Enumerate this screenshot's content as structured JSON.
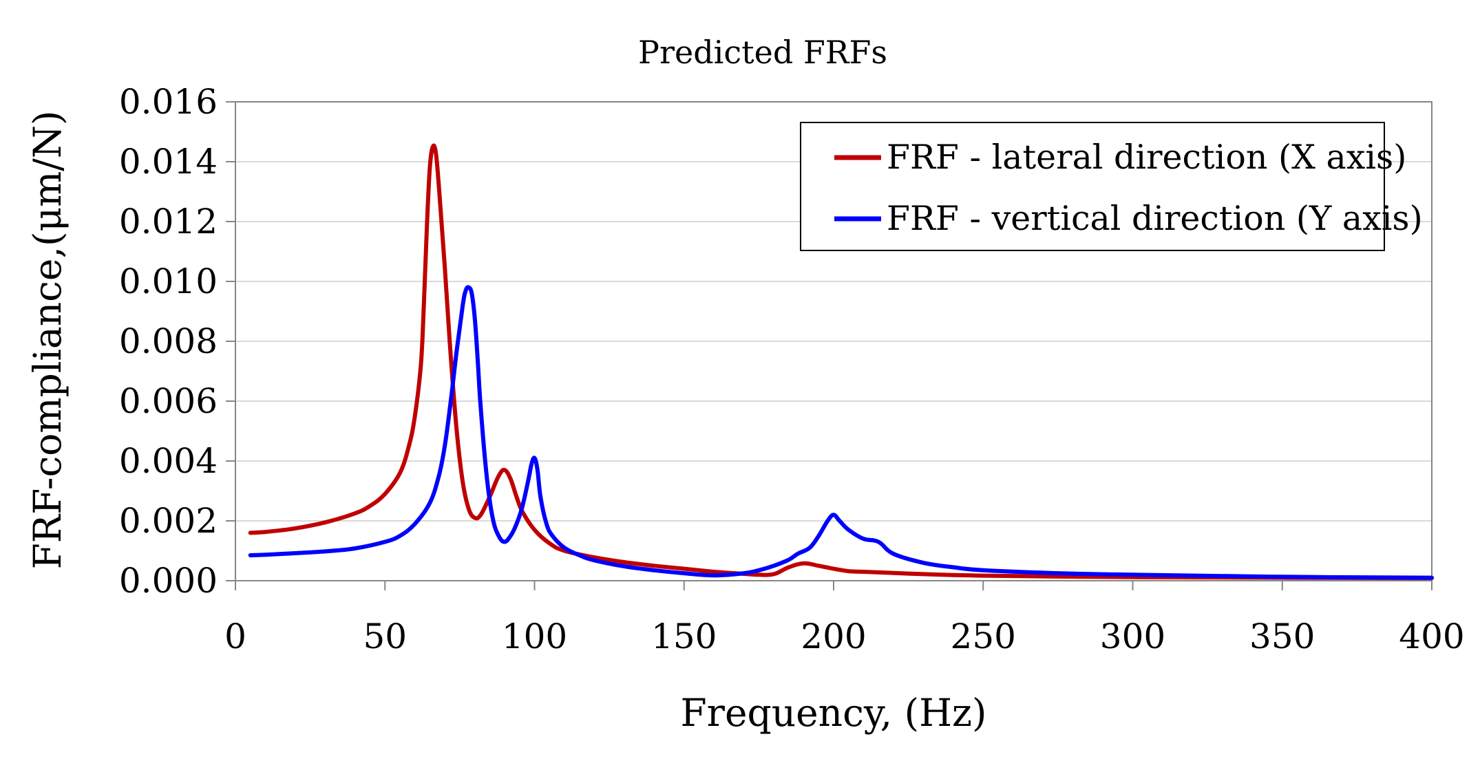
{
  "chart_data": {
    "type": "line",
    "title": "Predicted FRFs",
    "xlabel": "Frequency, (Hz)",
    "ylabel": "FRF-compliance,(μm/N)",
    "xlim": [
      0,
      400
    ],
    "ylim": [
      0,
      0.016
    ],
    "x_ticks": [
      "0",
      "50",
      "100",
      "150",
      "200",
      "250",
      "300",
      "350",
      "400"
    ],
    "y_ticks": [
      "0.000",
      "0.002",
      "0.004",
      "0.006",
      "0.008",
      "0.010",
      "0.012",
      "0.014",
      "0.016"
    ],
    "grid": true,
    "legend_position": "top-right",
    "series": [
      {
        "name": "FRF - lateral direction (X axis)",
        "color": "#c00000",
        "x": [
          5,
          10,
          20,
          30,
          40,
          45,
          50,
          55,
          58,
          60,
          62,
          63,
          64,
          65,
          66,
          67,
          68,
          70,
          72,
          74,
          76,
          78,
          80,
          82,
          85,
          88,
          90,
          92,
          94,
          96,
          100,
          105,
          110,
          120,
          130,
          140,
          150,
          160,
          170,
          175,
          180,
          185,
          190,
          195,
          200,
          205,
          210,
          220,
          230,
          240,
          250,
          275,
          300,
          350,
          400
        ],
        "y": [
          0.0016,
          0.00163,
          0.00175,
          0.00195,
          0.00225,
          0.0025,
          0.0029,
          0.0036,
          0.0045,
          0.0055,
          0.0072,
          0.0092,
          0.0118,
          0.0138,
          0.0145,
          0.0143,
          0.0132,
          0.0105,
          0.0075,
          0.005,
          0.0033,
          0.0024,
          0.0021,
          0.0022,
          0.0028,
          0.0035,
          0.0037,
          0.0034,
          0.0028,
          0.0023,
          0.0017,
          0.00125,
          0.001,
          0.00078,
          0.00062,
          0.0005,
          0.0004,
          0.0003,
          0.00023,
          0.0002,
          0.00022,
          0.00045,
          0.00058,
          0.0005,
          0.0004,
          0.00032,
          0.0003,
          0.00026,
          0.00022,
          0.00019,
          0.00017,
          0.00014,
          0.00012,
          0.0001,
          9e-05
        ]
      },
      {
        "name": "FRF - vertical direction (Y axis)",
        "color": "#0000ff",
        "x": [
          5,
          10,
          20,
          30,
          40,
          50,
          55,
          60,
          65,
          68,
          70,
          72,
          74,
          76,
          77,
          78,
          79,
          80,
          81,
          82,
          84,
          86,
          88,
          90,
          92,
          94,
          96,
          98,
          99,
          100,
          101,
          102,
          104,
          106,
          110,
          115,
          120,
          130,
          140,
          150,
          160,
          170,
          175,
          180,
          185,
          188,
          192,
          195,
          198,
          200,
          202,
          205,
          210,
          215,
          220,
          230,
          240,
          250,
          275,
          300,
          350,
          400
        ],
        "y": [
          0.00085,
          0.00087,
          0.00092,
          0.00098,
          0.00108,
          0.0013,
          0.0015,
          0.0019,
          0.0026,
          0.0035,
          0.0045,
          0.006,
          0.0077,
          0.0092,
          0.0097,
          0.0098,
          0.0096,
          0.0088,
          0.0074,
          0.0058,
          0.0035,
          0.0021,
          0.0015,
          0.0013,
          0.0015,
          0.0019,
          0.0025,
          0.0034,
          0.0039,
          0.0041,
          0.0037,
          0.0028,
          0.0019,
          0.0015,
          0.0011,
          0.00085,
          0.00068,
          0.00048,
          0.00035,
          0.00025,
          0.00018,
          0.00025,
          0.00035,
          0.0005,
          0.0007,
          0.0009,
          0.0011,
          0.0015,
          0.002,
          0.0022,
          0.002,
          0.0017,
          0.0014,
          0.0013,
          0.0009,
          0.0006,
          0.00045,
          0.00035,
          0.00025,
          0.0002,
          0.00013,
          0.0001
        ]
      }
    ]
  }
}
